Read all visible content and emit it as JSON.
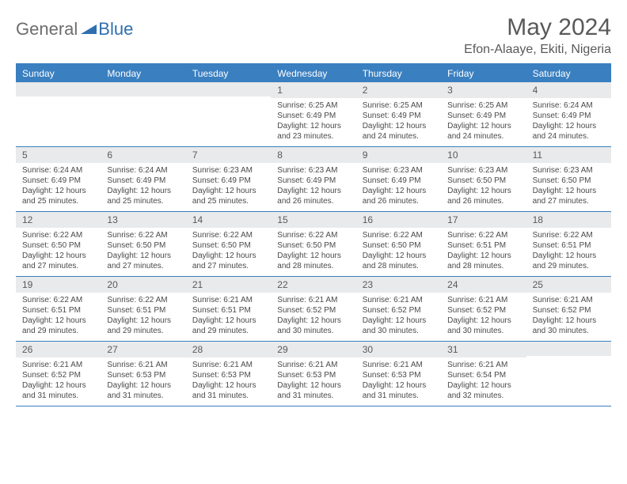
{
  "logo": {
    "text1": "General",
    "text2": "Blue",
    "icon_color": "#2f6fb0",
    "text1_color": "#6d6d6d",
    "text2_color": "#2f6fb0"
  },
  "title": "May 2024",
  "location": "Efon-Alaaye, Ekiti, Nigeria",
  "colors": {
    "header_bg": "#3a7fc0",
    "header_text": "#ffffff",
    "date_bg": "#e9eaeb",
    "body_text": "#4a4a4a",
    "title_text": "#595959",
    "border": "#3a7fc0"
  },
  "day_names": [
    "Sunday",
    "Monday",
    "Tuesday",
    "Wednesday",
    "Thursday",
    "Friday",
    "Saturday"
  ],
  "weeks": [
    [
      {
        "date": "",
        "body": ""
      },
      {
        "date": "",
        "body": ""
      },
      {
        "date": "",
        "body": ""
      },
      {
        "date": "1",
        "sunrise": "6:25 AM",
        "sunset": "6:49 PM",
        "daylight": "12 hours and 23 minutes."
      },
      {
        "date": "2",
        "sunrise": "6:25 AM",
        "sunset": "6:49 PM",
        "daylight": "12 hours and 24 minutes."
      },
      {
        "date": "3",
        "sunrise": "6:25 AM",
        "sunset": "6:49 PM",
        "daylight": "12 hours and 24 minutes."
      },
      {
        "date": "4",
        "sunrise": "6:24 AM",
        "sunset": "6:49 PM",
        "daylight": "12 hours and 24 minutes."
      }
    ],
    [
      {
        "date": "5",
        "sunrise": "6:24 AM",
        "sunset": "6:49 PM",
        "daylight": "12 hours and 25 minutes."
      },
      {
        "date": "6",
        "sunrise": "6:24 AM",
        "sunset": "6:49 PM",
        "daylight": "12 hours and 25 minutes."
      },
      {
        "date": "7",
        "sunrise": "6:23 AM",
        "sunset": "6:49 PM",
        "daylight": "12 hours and 25 minutes."
      },
      {
        "date": "8",
        "sunrise": "6:23 AM",
        "sunset": "6:49 PM",
        "daylight": "12 hours and 26 minutes."
      },
      {
        "date": "9",
        "sunrise": "6:23 AM",
        "sunset": "6:49 PM",
        "daylight": "12 hours and 26 minutes."
      },
      {
        "date": "10",
        "sunrise": "6:23 AM",
        "sunset": "6:50 PM",
        "daylight": "12 hours and 26 minutes."
      },
      {
        "date": "11",
        "sunrise": "6:23 AM",
        "sunset": "6:50 PM",
        "daylight": "12 hours and 27 minutes."
      }
    ],
    [
      {
        "date": "12",
        "sunrise": "6:22 AM",
        "sunset": "6:50 PM",
        "daylight": "12 hours and 27 minutes."
      },
      {
        "date": "13",
        "sunrise": "6:22 AM",
        "sunset": "6:50 PM",
        "daylight": "12 hours and 27 minutes."
      },
      {
        "date": "14",
        "sunrise": "6:22 AM",
        "sunset": "6:50 PM",
        "daylight": "12 hours and 27 minutes."
      },
      {
        "date": "15",
        "sunrise": "6:22 AM",
        "sunset": "6:50 PM",
        "daylight": "12 hours and 28 minutes."
      },
      {
        "date": "16",
        "sunrise": "6:22 AM",
        "sunset": "6:50 PM",
        "daylight": "12 hours and 28 minutes."
      },
      {
        "date": "17",
        "sunrise": "6:22 AM",
        "sunset": "6:51 PM",
        "daylight": "12 hours and 28 minutes."
      },
      {
        "date": "18",
        "sunrise": "6:22 AM",
        "sunset": "6:51 PM",
        "daylight": "12 hours and 29 minutes."
      }
    ],
    [
      {
        "date": "19",
        "sunrise": "6:22 AM",
        "sunset": "6:51 PM",
        "daylight": "12 hours and 29 minutes."
      },
      {
        "date": "20",
        "sunrise": "6:22 AM",
        "sunset": "6:51 PM",
        "daylight": "12 hours and 29 minutes."
      },
      {
        "date": "21",
        "sunrise": "6:21 AM",
        "sunset": "6:51 PM",
        "daylight": "12 hours and 29 minutes."
      },
      {
        "date": "22",
        "sunrise": "6:21 AM",
        "sunset": "6:52 PM",
        "daylight": "12 hours and 30 minutes."
      },
      {
        "date": "23",
        "sunrise": "6:21 AM",
        "sunset": "6:52 PM",
        "daylight": "12 hours and 30 minutes."
      },
      {
        "date": "24",
        "sunrise": "6:21 AM",
        "sunset": "6:52 PM",
        "daylight": "12 hours and 30 minutes."
      },
      {
        "date": "25",
        "sunrise": "6:21 AM",
        "sunset": "6:52 PM",
        "daylight": "12 hours and 30 minutes."
      }
    ],
    [
      {
        "date": "26",
        "sunrise": "6:21 AM",
        "sunset": "6:52 PM",
        "daylight": "12 hours and 31 minutes."
      },
      {
        "date": "27",
        "sunrise": "6:21 AM",
        "sunset": "6:53 PM",
        "daylight": "12 hours and 31 minutes."
      },
      {
        "date": "28",
        "sunrise": "6:21 AM",
        "sunset": "6:53 PM",
        "daylight": "12 hours and 31 minutes."
      },
      {
        "date": "29",
        "sunrise": "6:21 AM",
        "sunset": "6:53 PM",
        "daylight": "12 hours and 31 minutes."
      },
      {
        "date": "30",
        "sunrise": "6:21 AM",
        "sunset": "6:53 PM",
        "daylight": "12 hours and 31 minutes."
      },
      {
        "date": "31",
        "sunrise": "6:21 AM",
        "sunset": "6:54 PM",
        "daylight": "12 hours and 32 minutes."
      },
      {
        "date": "",
        "body": ""
      }
    ]
  ],
  "labels": {
    "sunrise": "Sunrise:",
    "sunset": "Sunset:",
    "daylight": "Daylight:"
  }
}
